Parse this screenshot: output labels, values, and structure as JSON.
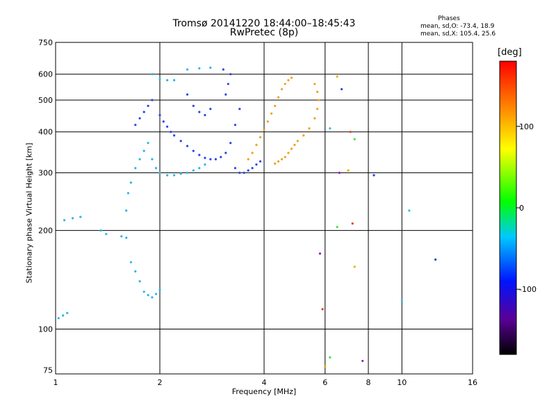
{
  "title_line1": "Tromsø 20141220 18:44:00–18:45:43",
  "title_line2": "RwPretec (8p)",
  "phases": {
    "heading": "Phases",
    "o_line": "mean, sd,O: -73.4, 18.9",
    "x_line": "mean, sd,X: 105.4, 25.6"
  },
  "colorbar": {
    "unit": "[deg]",
    "ticks": [
      "100",
      "0",
      "-100"
    ],
    "tick_values": [
      100,
      0,
      -100
    ],
    "range": [
      -180,
      180
    ]
  },
  "chart_data": {
    "type": "scatter",
    "xlabel": "Frequency [MHz]",
    "ylabel": "Stationary phase Virtual Height [km]",
    "x_scale": "log",
    "y_scale": "log",
    "xlim": [
      1,
      16
    ],
    "ylim": [
      73,
      750
    ],
    "grid": true,
    "x_ticks": [
      1,
      2,
      4,
      6,
      8,
      10,
      16
    ],
    "x_tick_labels": [
      "1",
      "2",
      "4",
      "6",
      "8",
      "10",
      "16"
    ],
    "y_ticks": [
      75,
      100,
      200,
      300,
      400,
      500,
      600,
      750
    ],
    "y_tick_labels": [
      "75",
      "100",
      "200",
      "300",
      "400",
      "500",
      "600",
      "750"
    ],
    "colors": {
      "ordinary": "#2a46e6",
      "extraordinary": "#f2a020",
      "light_trace": "#29b6e8"
    },
    "series": [
      {
        "color_role": "light_trace",
        "phase": -60,
        "points": [
          [
            1.02,
            108
          ],
          [
            1.05,
            110
          ],
          [
            1.08,
            112
          ],
          [
            1.06,
            215
          ],
          [
            1.12,
            218
          ],
          [
            1.18,
            220
          ],
          [
            1.35,
            200
          ],
          [
            1.4,
            195
          ],
          [
            1.55,
            192
          ],
          [
            1.6,
            190
          ],
          [
            1.65,
            160
          ],
          [
            1.7,
            150
          ],
          [
            1.75,
            140
          ],
          [
            1.8,
            130
          ],
          [
            1.85,
            127
          ],
          [
            1.9,
            125
          ],
          [
            1.95,
            128
          ],
          [
            2.0,
            132
          ],
          [
            1.6,
            230
          ],
          [
            1.62,
            260
          ],
          [
            1.65,
            280
          ],
          [
            1.7,
            310
          ],
          [
            1.75,
            330
          ],
          [
            1.8,
            350
          ],
          [
            1.85,
            370
          ],
          [
            1.9,
            330
          ],
          [
            1.95,
            310
          ],
          [
            2.0,
            300
          ],
          [
            2.1,
            295
          ],
          [
            2.2,
            295
          ],
          [
            2.3,
            298
          ],
          [
            2.4,
            300
          ],
          [
            2.5,
            305
          ],
          [
            2.6,
            310
          ],
          [
            2.7,
            318
          ],
          [
            1.9,
            600
          ],
          [
            2.0,
            580
          ],
          [
            2.1,
            575
          ],
          [
            2.2,
            575
          ],
          [
            2.4,
            620
          ],
          [
            2.6,
            625
          ],
          [
            2.8,
            628
          ]
        ]
      },
      {
        "color_role": "ordinary",
        "phase": -95,
        "points": [
          [
            1.7,
            420
          ],
          [
            1.75,
            440
          ],
          [
            1.8,
            460
          ],
          [
            1.85,
            480
          ],
          [
            1.9,
            500
          ],
          [
            2.0,
            450
          ],
          [
            2.05,
            430
          ],
          [
            2.1,
            415
          ],
          [
            2.15,
            400
          ],
          [
            2.2,
            390
          ],
          [
            2.3,
            375
          ],
          [
            2.4,
            362
          ],
          [
            2.5,
            350
          ],
          [
            2.6,
            340
          ],
          [
            2.7,
            333
          ],
          [
            2.8,
            330
          ],
          [
            2.9,
            330
          ],
          [
            3.0,
            335
          ],
          [
            3.1,
            345
          ],
          [
            3.2,
            370
          ],
          [
            3.3,
            420
          ],
          [
            3.4,
            470
          ],
          [
            2.4,
            520
          ],
          [
            2.5,
            480
          ],
          [
            2.6,
            460
          ],
          [
            2.7,
            450
          ],
          [
            2.8,
            470
          ],
          [
            3.1,
            520
          ],
          [
            3.15,
            560
          ],
          [
            3.2,
            600
          ],
          [
            3.05,
            620
          ],
          [
            3.3,
            310
          ],
          [
            3.4,
            300
          ],
          [
            3.5,
            300
          ],
          [
            3.6,
            305
          ],
          [
            3.7,
            310
          ],
          [
            3.8,
            318
          ],
          [
            3.9,
            325
          ]
        ]
      },
      {
        "color_role": "extraordinary",
        "phase": 105,
        "points": [
          [
            3.6,
            330
          ],
          [
            3.7,
            345
          ],
          [
            3.8,
            365
          ],
          [
            3.9,
            385
          ],
          [
            4.0,
            405
          ],
          [
            4.1,
            430
          ],
          [
            4.2,
            455
          ],
          [
            4.3,
            480
          ],
          [
            4.4,
            510
          ],
          [
            4.5,
            540
          ],
          [
            4.6,
            560
          ],
          [
            4.7,
            575
          ],
          [
            4.8,
            585
          ],
          [
            4.3,
            320
          ],
          [
            4.4,
            325
          ],
          [
            4.5,
            330
          ],
          [
            4.6,
            335
          ],
          [
            4.7,
            345
          ],
          [
            4.8,
            355
          ],
          [
            4.9,
            365
          ],
          [
            5.0,
            375
          ],
          [
            5.2,
            390
          ],
          [
            5.4,
            410
          ],
          [
            5.6,
            440
          ],
          [
            5.7,
            470
          ],
          [
            5.75,
            500
          ],
          [
            5.7,
            530
          ],
          [
            5.6,
            560
          ]
        ]
      },
      {
        "color_role": "sparse",
        "phase": 0,
        "points": [
          [
            6.5,
            590
          ],
          [
            6.7,
            540
          ],
          [
            6.2,
            410
          ],
          [
            7.1,
            400
          ],
          [
            7.3,
            380
          ],
          [
            6.6,
            300
          ],
          [
            7.0,
            305
          ],
          [
            8.3,
            295
          ],
          [
            10.5,
            230
          ],
          [
            7.2,
            210
          ],
          [
            6.5,
            205
          ],
          [
            5.8,
            170
          ],
          [
            7.3,
            155
          ],
          [
            12.5,
            163
          ],
          [
            10.0,
            122
          ],
          [
            5.9,
            115
          ],
          [
            6.2,
            82
          ],
          [
            7.7,
            80
          ],
          [
            6.0,
            77
          ]
        ]
      }
    ]
  }
}
